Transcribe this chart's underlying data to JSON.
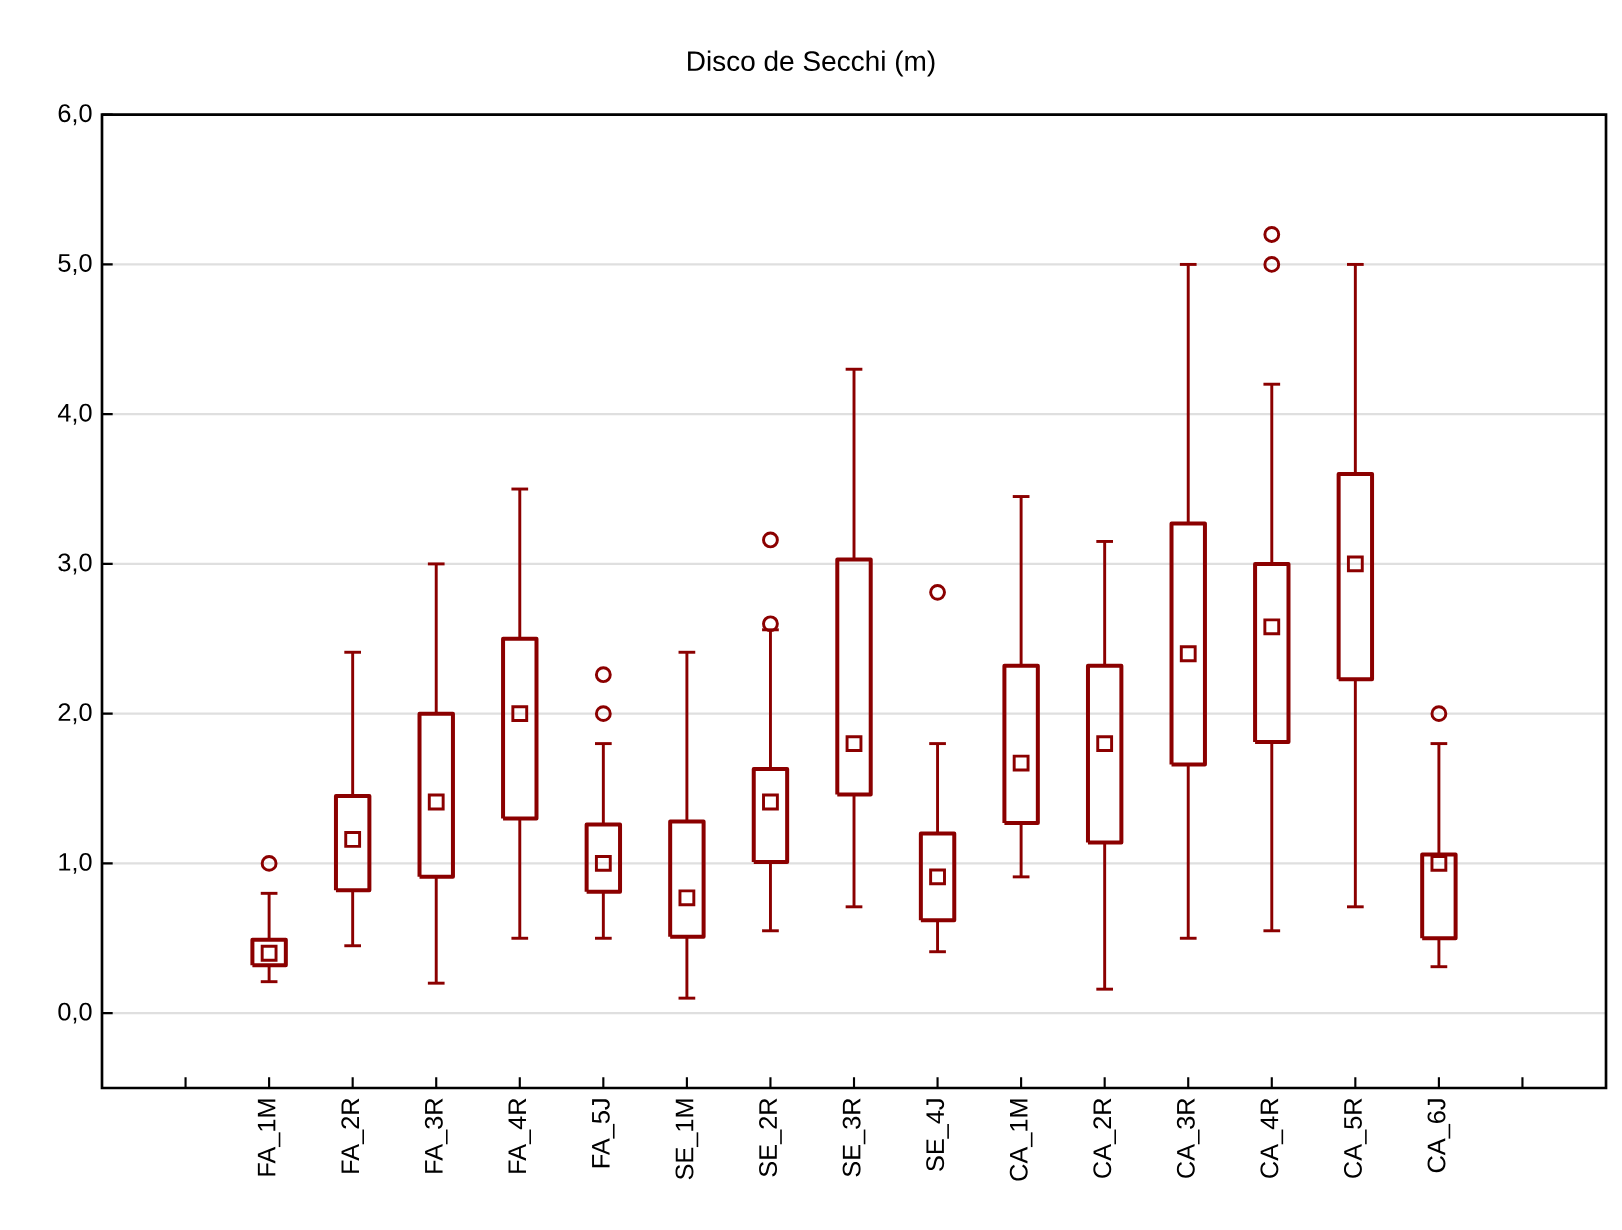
{
  "chart_data": {
    "type": "box",
    "title": "Disco de Secchi (m)",
    "categories": [
      "FA_1M",
      "FA_2R",
      "FA_3R",
      "FA_4R",
      "FA_5J",
      "SE_1M",
      "SE_2R",
      "SE_3R",
      "SE_4J",
      "CA_1M",
      "CA_2R",
      "CA_3R",
      "CA_4R",
      "CA_5R",
      "CA_6J"
    ],
    "color": "#8b0000",
    "boxes": [
      {
        "low": 0.21,
        "q1": 0.32,
        "median": 0.4,
        "q3": 0.49,
        "high": 0.8,
        "outliers": [
          1.0
        ]
      },
      {
        "low": 0.45,
        "q1": 0.82,
        "median": 1.16,
        "q3": 1.45,
        "high": 2.41
      },
      {
        "low": 0.2,
        "q1": 0.91,
        "median": 1.41,
        "q3": 2.0,
        "high": 3.0
      },
      {
        "low": 0.5,
        "q1": 1.3,
        "median": 2.0,
        "q3": 2.5,
        "high": 3.5
      },
      {
        "low": 0.5,
        "q1": 0.81,
        "median": 1.0,
        "q3": 1.26,
        "high": 1.8,
        "outliers": [
          2.0,
          2.26
        ]
      },
      {
        "low": 0.1,
        "q1": 0.51,
        "median": 0.77,
        "q3": 1.28,
        "high": 2.41
      },
      {
        "low": 0.55,
        "q1": 1.01,
        "median": 1.41,
        "q3": 1.63,
        "high": 2.56,
        "outliers": [
          2.6,
          3.16
        ]
      },
      {
        "low": 0.71,
        "q1": 1.46,
        "median": 1.8,
        "q3": 3.03,
        "high": 4.3
      },
      {
        "low": 0.41,
        "q1": 0.62,
        "median": 0.91,
        "q3": 1.2,
        "high": 1.8,
        "outliers": [
          2.81
        ]
      },
      {
        "low": 0.91,
        "q1": 1.27,
        "median": 1.67,
        "q3": 2.32,
        "high": 3.45
      },
      {
        "low": 0.16,
        "q1": 1.14,
        "median": 1.8,
        "q3": 2.32,
        "high": 3.15
      },
      {
        "low": 0.5,
        "q1": 1.66,
        "median": 2.4,
        "q3": 3.27,
        "high": 5.0
      },
      {
        "low": 0.55,
        "q1": 1.81,
        "median": 2.58,
        "q3": 3.0,
        "high": 4.2,
        "outliers": [
          5.0,
          5.2
        ]
      },
      {
        "low": 0.71,
        "q1": 2.23,
        "median": 3.0,
        "q3": 3.6,
        "high": 5.0
      },
      {
        "low": 0.31,
        "q1": 0.5,
        "median": 1.0,
        "q3": 1.06,
        "high": 1.8,
        "outliers": [
          2.0
        ]
      }
    ],
    "ylim": [
      -0.5,
      6.0
    ],
    "yticks": [
      {
        "value": 0,
        "label": "0,0"
      },
      {
        "value": 1,
        "label": "1,0"
      },
      {
        "value": 2,
        "label": "2,0"
      },
      {
        "value": 3,
        "label": "3,0"
      },
      {
        "value": 4,
        "label": "4,0"
      },
      {
        "value": 5,
        "label": "5,0"
      },
      {
        "value": 6,
        "label": "6,0"
      }
    ],
    "grid": "y"
  }
}
